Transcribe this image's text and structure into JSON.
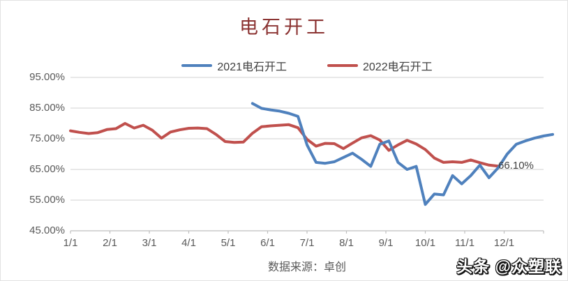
{
  "title": "电石开工",
  "legend_items": [
    {
      "label": "2021电石开工",
      "color": "#4F81BD"
    },
    {
      "label": "2022电石开工",
      "color": "#C0504D"
    }
  ],
  "annotation": "66.10%",
  "source_note": "数据来源：卓创",
  "watermark": "头条 @众塑联",
  "colors": {
    "title_text": "#8b3332",
    "axis_text": "#595959",
    "gridline": "#d9d9d9",
    "axis_line": "#bfbfbf",
    "series_2021": "#4F81BD",
    "series_2022": "#C0504D"
  },
  "chart_data": {
    "type": "line",
    "title": "电石开工",
    "x_tick_labels": [
      "1/1",
      "2/1",
      "3/1",
      "4/1",
      "5/1",
      "6/1",
      "7/1",
      "8/1",
      "9/1",
      "10/1",
      "11/1",
      "12/1"
    ],
    "y_tick_labels": [
      "95.00%",
      "85.00%",
      "75.00%",
      "65.00%",
      "55.00%",
      "45.00%"
    ],
    "ylim": [
      45,
      95
    ],
    "y_unit": "percent",
    "grid": "horizontal",
    "legend_position": "top-center",
    "weeks_total": 53,
    "series": [
      {
        "name": "2021电石开工",
        "color": "#4F81BD",
        "start_index": 20,
        "values": [
          86.5,
          84.9,
          84.4,
          84.0,
          83.3,
          82.3,
          73.0,
          67.3,
          67.0,
          67.5,
          68.9,
          70.3,
          68.3,
          66.0,
          73.2,
          74.3,
          67.3,
          65.0,
          66.0,
          53.6,
          57.0,
          56.7,
          63.0,
          60.3,
          63.0,
          66.4,
          62.3,
          65.5,
          70.0,
          73.2,
          74.3,
          75.2,
          75.9,
          76.4
        ]
      },
      {
        "name": "2022电石开工",
        "color": "#C0504D",
        "start_index": 0,
        "values": [
          77.6,
          77.1,
          76.7,
          77.0,
          78.0,
          78.3,
          80.0,
          78.5,
          79.4,
          77.8,
          75.2,
          77.2,
          77.9,
          78.4,
          78.5,
          78.3,
          76.4,
          74.1,
          73.8,
          73.9,
          76.8,
          78.9,
          79.2,
          79.4,
          79.6,
          78.6,
          74.8,
          72.6,
          73.5,
          73.4,
          71.8,
          73.6,
          75.3,
          76.0,
          74.6,
          71.2,
          73.0,
          74.5,
          73.3,
          71.5,
          68.7,
          67.3,
          67.5,
          67.3,
          68.1,
          67.2,
          66.4,
          66.1
        ]
      }
    ],
    "annotation": {
      "text": "66.10%",
      "attached_to": "2022电石开工",
      "position": "end-of-line"
    }
  }
}
